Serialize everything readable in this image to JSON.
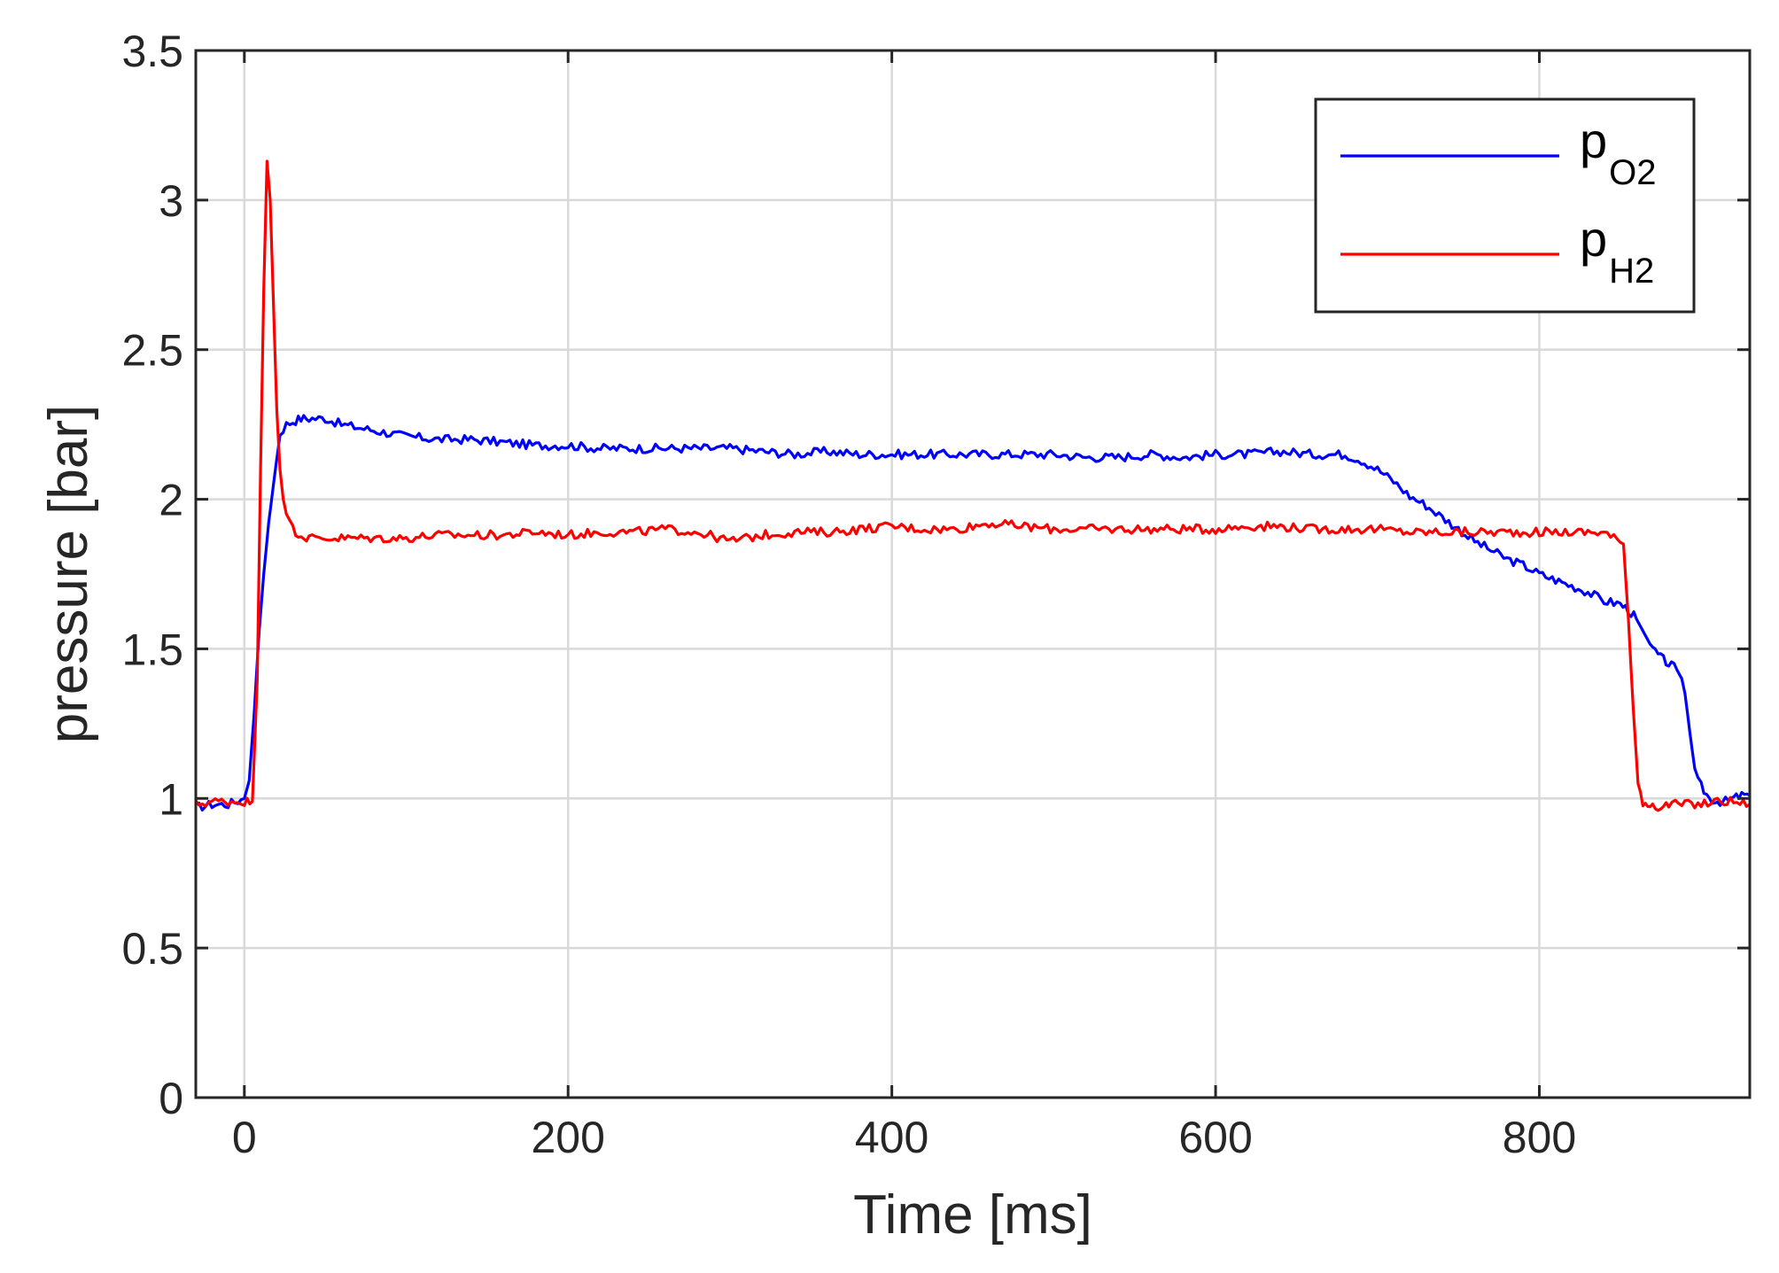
{
  "chart_data": {
    "type": "line",
    "title": "",
    "xlabel": "Time [ms]",
    "ylabel": "pressure [bar]",
    "xlim": [
      -30,
      930
    ],
    "ylim": [
      0,
      3.5
    ],
    "xticks": [
      0,
      200,
      400,
      600,
      800
    ],
    "xtick_labels": [
      "0",
      "200",
      "400",
      "600",
      "800"
    ],
    "yticks": [
      0,
      0.5,
      1,
      1.5,
      2,
      2.5,
      3,
      3.5
    ],
    "ytick_labels": [
      "0",
      "0.5",
      "1",
      "1.5",
      "2",
      "2.5",
      "3",
      "3.5"
    ],
    "grid": true,
    "legend_position": "top-right",
    "series": [
      {
        "name": "pO2",
        "name_base": "p",
        "name_sub": "O2",
        "color": "#0000ff",
        "x": [
          -30,
          -20,
          -10,
          0,
          3,
          6,
          9,
          12,
          15,
          18,
          22,
          26,
          30,
          35,
          40,
          50,
          60,
          70,
          80,
          90,
          100,
          120,
          140,
          160,
          180,
          200,
          220,
          240,
          260,
          280,
          300,
          320,
          340,
          360,
          380,
          400,
          420,
          440,
          460,
          480,
          500,
          520,
          540,
          560,
          580,
          600,
          620,
          640,
          660,
          680,
          690,
          700,
          710,
          720,
          730,
          740,
          750,
          760,
          770,
          780,
          790,
          800,
          810,
          820,
          830,
          840,
          850,
          855,
          860,
          865,
          870,
          875,
          880,
          885,
          888,
          890,
          893,
          896,
          900,
          905,
          910,
          915,
          920,
          925,
          930
        ],
        "y": [
          0.97,
          0.98,
          0.98,
          1.0,
          1.06,
          1.28,
          1.55,
          1.75,
          1.92,
          2.05,
          2.22,
          2.25,
          2.26,
          2.27,
          2.27,
          2.27,
          2.25,
          2.24,
          2.23,
          2.22,
          2.21,
          2.2,
          2.2,
          2.19,
          2.18,
          2.18,
          2.17,
          2.17,
          2.17,
          2.17,
          2.17,
          2.16,
          2.15,
          2.16,
          2.15,
          2.15,
          2.15,
          2.15,
          2.15,
          2.15,
          2.15,
          2.14,
          2.14,
          2.15,
          2.14,
          2.15,
          2.15,
          2.16,
          2.15,
          2.15,
          2.13,
          2.1,
          2.06,
          2.01,
          1.98,
          1.94,
          1.9,
          1.86,
          1.83,
          1.8,
          1.78,
          1.75,
          1.73,
          1.71,
          1.69,
          1.66,
          1.65,
          1.63,
          1.6,
          1.55,
          1.5,
          1.47,
          1.45,
          1.43,
          1.4,
          1.35,
          1.22,
          1.1,
          1.04,
          1.0,
          0.99,
          0.99,
          1.0,
          1.01,
          1.01
        ]
      },
      {
        "name": "pH2",
        "name_base": "p",
        "name_sub": "H2",
        "color": "#ff0000",
        "x": [
          -30,
          -20,
          -10,
          0,
          5,
          8,
          10,
          12,
          14,
          16,
          18,
          20,
          22,
          24,
          26,
          28,
          30,
          35,
          40,
          50,
          60,
          80,
          100,
          120,
          140,
          160,
          180,
          200,
          220,
          240,
          260,
          280,
          300,
          320,
          340,
          360,
          380,
          400,
          420,
          440,
          460,
          480,
          500,
          520,
          540,
          560,
          580,
          600,
          620,
          640,
          660,
          680,
          700,
          720,
          740,
          760,
          780,
          800,
          820,
          840,
          852,
          855,
          858,
          861,
          864,
          867,
          870,
          875,
          880,
          890,
          900,
          910,
          920,
          930
        ],
        "y": [
          0.98,
          0.99,
          0.99,
          0.99,
          0.99,
          1.4,
          2.1,
          2.7,
          3.13,
          3.0,
          2.65,
          2.3,
          2.1,
          2.0,
          1.95,
          1.93,
          1.9,
          1.88,
          1.87,
          1.87,
          1.87,
          1.87,
          1.87,
          1.88,
          1.88,
          1.88,
          1.89,
          1.88,
          1.89,
          1.89,
          1.9,
          1.89,
          1.86,
          1.88,
          1.89,
          1.89,
          1.9,
          1.91,
          1.9,
          1.9,
          1.92,
          1.91,
          1.9,
          1.9,
          1.9,
          1.9,
          1.9,
          1.9,
          1.91,
          1.91,
          1.9,
          1.9,
          1.9,
          1.89,
          1.89,
          1.89,
          1.89,
          1.89,
          1.89,
          1.89,
          1.85,
          1.6,
          1.3,
          1.05,
          0.99,
          0.98,
          0.98,
          0.97,
          0.98,
          0.98,
          0.98,
          0.99,
          0.99,
          0.98
        ]
      }
    ]
  }
}
